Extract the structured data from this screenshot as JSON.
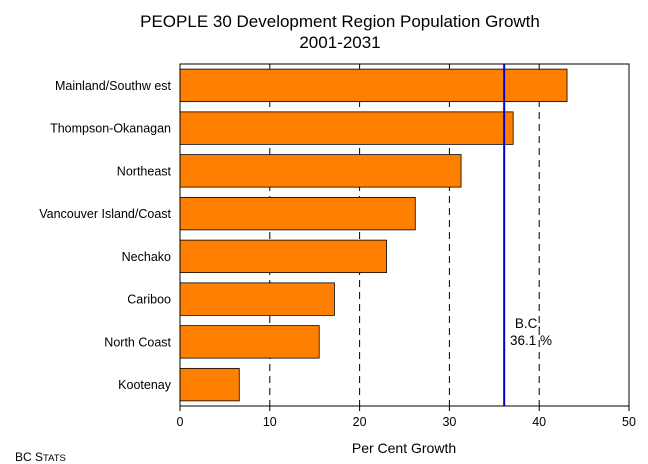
{
  "chart_data": {
    "type": "bar",
    "orientation": "horizontal",
    "title": "PEOPLE 30 Development Region Population Growth",
    "subtitle": "2001-2031",
    "categories": [
      "Mainland/Southw est",
      "Thompson-Okanagan",
      "Northeast",
      "Vancouver Island/Coast",
      "Nechako",
      "Cariboo",
      "North Coast",
      "Kootenay"
    ],
    "values": [
      43.1,
      37.1,
      31.3,
      26.2,
      23.0,
      17.2,
      15.5,
      6.6
    ],
    "xlabel": "Per Cent Growth",
    "xlim": [
      0,
      50
    ],
    "xticks": [
      "0",
      "10",
      "20",
      "30",
      "40",
      "50"
    ],
    "grid": "vertical dashed",
    "bar_color": "#ff8000",
    "reference_line": {
      "value": 36.1,
      "label_line1": "B.C.",
      "label_line2": "36.1 %",
      "color": "#0000cc"
    }
  },
  "footer": {
    "source_prefix": "BC S",
    "source_suffix": "TATS"
  }
}
